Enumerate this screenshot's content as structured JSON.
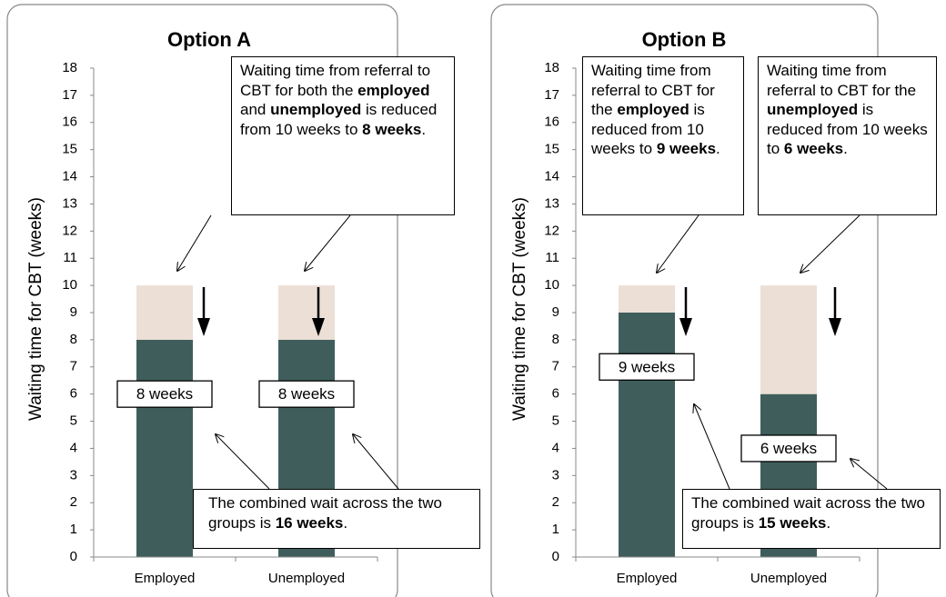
{
  "chart_data": [
    {
      "type": "bar",
      "stacked": true,
      "title": "Option A",
      "y_label": "Waiting time for CBT (weeks)",
      "categories": [
        "Employed",
        "Unemployed"
      ],
      "series": [
        {
          "color": "#3f5e5b",
          "values": [
            8,
            8
          ],
          "value_labels": [
            "8 weeks",
            "8 weeks"
          ]
        },
        {
          "color": "#ecdfd6",
          "values": [
            2,
            2
          ]
        }
      ],
      "ylim": [
        0,
        18
      ],
      "yticks": [
        0,
        1,
        2,
        3,
        4,
        5,
        6,
        7,
        8,
        9,
        10,
        11,
        12,
        13,
        14,
        15,
        16,
        17,
        18
      ],
      "annotations": [
        {
          "runs": [
            {
              "text": "Waiting time from referral to CBT for both the ",
              "bold": false
            },
            {
              "text": "employed",
              "bold": true
            },
            {
              "text": " and ",
              "bold": false
            },
            {
              "text": "unemployed",
              "bold": true
            },
            {
              "text": " is reduced from 10 weeks to ",
              "bold": false
            },
            {
              "text": "8 weeks",
              "bold": true
            },
            {
              "text": ".",
              "bold": false
            }
          ]
        },
        {
          "runs": [
            {
              "text": "The combined wait across the two groups is ",
              "bold": false
            },
            {
              "text": "16 weeks",
              "bold": true
            },
            {
              "text": ".",
              "bold": false
            }
          ]
        }
      ]
    },
    {
      "type": "bar",
      "stacked": true,
      "title": "Option B",
      "y_label": "Waiting time for CBT (weeks)",
      "categories": [
        "Employed",
        "Unemployed"
      ],
      "series": [
        {
          "color": "#3f5e5b",
          "values": [
            9,
            6
          ],
          "value_labels": [
            "9 weeks",
            "6 weeks"
          ]
        },
        {
          "color": "#ecdfd6",
          "values": [
            1,
            4
          ]
        }
      ],
      "ylim": [
        0,
        18
      ],
      "yticks": [
        0,
        1,
        2,
        3,
        4,
        5,
        6,
        7,
        8,
        9,
        10,
        11,
        12,
        13,
        14,
        15,
        16,
        17,
        18
      ],
      "annotations": [
        {
          "runs": [
            {
              "text": "Waiting time from referral to CBT for the ",
              "bold": false
            },
            {
              "text": "employed",
              "bold": true
            },
            {
              "text": " is reduced from 10 weeks to ",
              "bold": false
            },
            {
              "text": "9 weeks",
              "bold": true
            },
            {
              "text": ".",
              "bold": false
            }
          ]
        },
        {
          "runs": [
            {
              "text": "Waiting time from referral to CBT for the ",
              "bold": false
            },
            {
              "text": "unemployed",
              "bold": true
            },
            {
              "text": " is reduced from 10 weeks to ",
              "bold": false
            },
            {
              "text": "6 weeks",
              "bold": true
            },
            {
              "text": ".",
              "bold": false
            }
          ]
        },
        {
          "runs": [
            {
              "text": "The combined wait across the two groups is ",
              "bold": false
            },
            {
              "text": "15 weeks",
              "bold": true
            },
            {
              "text": ".",
              "bold": false
            }
          ]
        }
      ]
    }
  ]
}
